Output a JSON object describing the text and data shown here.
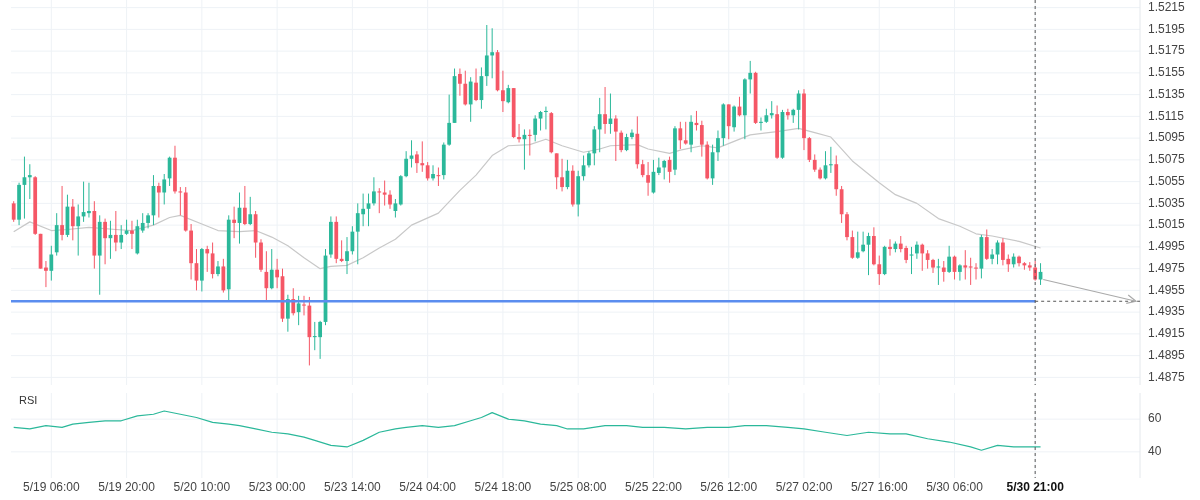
{
  "chart_data": [
    {
      "type": "candlestick",
      "grid": true,
      "tick_labels": "y",
      "categories": [
        null,
        null,
        null,
        null,
        null,
        null,
        null,
        "5/19 06:00",
        null,
        null,
        null,
        null,
        null,
        null,
        null,
        null,
        null,
        null,
        null,
        null,
        null,
        "5/19 20:00",
        null,
        null,
        null,
        null,
        null,
        null,
        null,
        null,
        null,
        null,
        null,
        null,
        null,
        "5/20 10:00",
        null,
        null,
        null,
        null,
        null,
        null,
        null,
        null,
        null,
        null,
        null,
        null,
        null,
        "5/23 00:00",
        null,
        null,
        null,
        null,
        null,
        null,
        null,
        null,
        null,
        null,
        null,
        null,
        null,
        "5/23 14:00",
        null,
        null,
        null,
        null,
        null,
        null,
        null,
        null,
        null,
        null,
        null,
        null,
        null,
        "5/24 04:00",
        null,
        null,
        null,
        null,
        null,
        null,
        null,
        null,
        null,
        null,
        null,
        null,
        null,
        "5/24 18:00",
        null,
        null,
        null,
        null,
        null,
        null,
        null,
        null,
        null,
        null,
        null,
        null,
        null,
        "5/25 08:00",
        null,
        null,
        null,
        null,
        null,
        null,
        null,
        null,
        null,
        null,
        null,
        null,
        null,
        "5/25 22:00",
        null,
        null,
        null,
        null,
        null,
        null,
        null,
        null,
        null,
        null,
        null,
        null,
        null,
        "5/26 12:00",
        null,
        null,
        null,
        null,
        null,
        null,
        null,
        null,
        null,
        null,
        null,
        null,
        null,
        "5/27 02:00",
        null,
        null,
        null,
        null,
        null,
        null,
        null,
        null,
        null,
        null,
        null,
        null,
        null,
        "5/27 16:00",
        null,
        null,
        null,
        null,
        null,
        null,
        null,
        null,
        null,
        null,
        null,
        null,
        null,
        "5/30 06:00",
        null,
        null,
        null,
        null,
        null,
        null,
        null,
        null,
        null,
        null,
        null,
        null,
        null,
        null,
        "5/30 21:00",
        null,
        null,
        null,
        null,
        null,
        null,
        null,
        null,
        null,
        null,
        null,
        null,
        null,
        null,
        null,
        null,
        null,
        null,
        null
      ],
      "ohlc": [
        [
          1.5035,
          1.5037,
          1.5018,
          1.502
        ],
        [
          1.502,
          1.5054,
          1.5015,
          1.5052
        ],
        [
          1.5052,
          1.5078,
          1.5021,
          1.5059
        ],
        [
          1.5059,
          1.5071,
          1.5039,
          1.5061
        ],
        [
          1.5059,
          1.506,
          1.5006,
          1.5007
        ],
        [
          1.5007,
          1.5007,
          1.4975,
          1.4975
        ],
        [
          1.4976,
          1.4982,
          1.4958,
          1.4973
        ],
        [
          1.4973,
          1.4996,
          1.4964,
          1.4988
        ],
        [
          1.499,
          1.5026,
          1.4987,
          1.5015
        ],
        [
          1.5015,
          1.5051,
          1.5001,
          1.5006
        ],
        [
          1.5006,
          1.5043,
          1.5004,
          1.5032
        ],
        [
          1.5032,
          1.5039,
          1.5001,
          1.5014
        ],
        [
          1.5014,
          1.5034,
          1.4987,
          1.5023
        ],
        [
          1.5023,
          1.5055,
          1.5018,
          1.5027
        ],
        [
          1.5026,
          1.5054,
          1.5022,
          1.5028
        ],
        [
          1.5028,
          1.5037,
          1.4975,
          1.4987
        ],
        [
          1.4987,
          1.5024,
          1.4951,
          1.5018
        ],
        [
          1.5018,
          1.5021,
          1.4979,
          1.5003
        ],
        [
          1.5003,
          1.5019,
          1.4984,
          1.5006
        ],
        [
          1.5006,
          1.5028,
          1.4991,
          1.4999
        ],
        [
          1.4999,
          1.5015,
          1.4993,
          1.5006
        ],
        [
          1.5007,
          1.502,
          1.5006,
          1.501
        ],
        [
          1.501,
          1.5019,
          1.4993,
          1.5007
        ],
        [
          1.4989,
          1.502,
          1.4988,
          1.5014
        ],
        [
          1.501,
          1.5026,
          1.5008,
          1.5017
        ],
        [
          1.5017,
          1.5026,
          1.5012,
          1.5024
        ],
        [
          1.5024,
          1.5061,
          1.5015,
          1.5051
        ],
        [
          1.5051,
          1.5054,
          1.5022,
          1.5045
        ],
        [
          1.5045,
          1.5062,
          1.5034,
          1.5057
        ],
        [
          1.5058,
          1.5078,
          1.5051,
          1.5077
        ],
        [
          1.5077,
          1.5088,
          1.5044,
          1.5046
        ],
        [
          1.5046,
          1.505,
          1.5024,
          1.5045
        ],
        [
          1.5045,
          1.505,
          1.5009,
          1.501
        ],
        [
          1.501,
          1.5016,
          1.4965,
          1.498
        ],
        [
          1.498,
          1.4993,
          1.4955,
          1.4964
        ],
        [
          1.4964,
          1.4994,
          1.4954,
          1.4993
        ],
        [
          1.4993,
          1.4996,
          1.4972,
          1.4989
        ],
        [
          1.4989,
          1.4999,
          1.4966,
          1.497
        ],
        [
          1.497,
          1.4982,
          1.4968,
          1.4977
        ],
        [
          1.4977,
          1.4984,
          1.4953,
          1.4955
        ],
        [
          1.4956,
          1.5024,
          1.4945,
          1.502
        ],
        [
          1.502,
          1.5032,
          1.5003,
          1.5017
        ],
        [
          1.5017,
          1.5045,
          1.4998,
          1.5031
        ],
        [
          1.5031,
          1.5051,
          1.5015,
          1.5016
        ],
        [
          1.5016,
          1.5041,
          1.5015,
          1.5025
        ],
        [
          1.5025,
          1.5028,
          1.4985,
          1.4999
        ],
        [
          1.4999,
          1.5002,
          1.4972,
          1.4974
        ],
        [
          1.4972,
          1.4991,
          1.4945,
          1.4957
        ],
        [
          1.4957,
          1.4993,
          1.4956,
          1.4974
        ],
        [
          1.4974,
          1.4984,
          1.4957,
          1.4967
        ],
        [
          1.4968,
          1.4975,
          1.4926,
          1.4929
        ],
        [
          1.4929,
          1.4951,
          1.4917,
          1.4947
        ],
        [
          1.4947,
          1.4957,
          1.4932,
          1.4934
        ],
        [
          1.4935,
          1.495,
          1.4923,
          1.4943
        ],
        [
          1.4942,
          1.495,
          1.4932,
          1.4941
        ],
        [
          1.4941,
          1.4949,
          1.4886,
          1.4912
        ],
        [
          1.4912,
          1.4926,
          1.49,
          1.4913
        ],
        [
          1.4912,
          1.4927,
          1.4892,
          1.4926
        ],
        [
          1.4926,
          1.4993,
          1.4923,
          1.4987
        ],
        [
          1.4988,
          1.5023,
          1.4985,
          1.5018
        ],
        [
          1.5018,
          1.5023,
          1.498,
          1.4984
        ],
        [
          1.4984,
          1.5001,
          1.4981,
          1.4982
        ],
        [
          1.4982,
          1.5004,
          1.497,
          1.4991
        ],
        [
          1.4991,
          1.5014,
          1.4988,
          1.5009
        ],
        [
          1.5009,
          1.5035,
          1.4979,
          1.5026
        ],
        [
          1.5025,
          1.5044,
          1.5014,
          1.503
        ],
        [
          1.503,
          1.5044,
          1.5014,
          1.5035
        ],
        [
          1.5035,
          1.5059,
          1.5033,
          1.5046
        ],
        [
          1.5046,
          1.5049,
          1.5026,
          1.5045
        ],
        [
          1.5045,
          1.5056,
          1.5033,
          1.5043
        ],
        [
          1.5043,
          1.5047,
          1.503,
          1.5034
        ],
        [
          1.5028,
          1.5039,
          1.5022,
          1.5035
        ],
        [
          1.5034,
          1.5061,
          1.5033,
          1.506
        ],
        [
          1.506,
          1.5083,
          1.5059,
          1.5076
        ],
        [
          1.5076,
          1.5093,
          1.5068,
          1.5079
        ],
        [
          1.508,
          1.5083,
          1.5063,
          1.5072
        ],
        [
          1.5072,
          1.5092,
          1.5064,
          1.507
        ],
        [
          1.507,
          1.5073,
          1.5056,
          1.5058
        ],
        [
          1.5058,
          1.507,
          1.5056,
          1.5062
        ],
        [
          1.5061,
          1.5068,
          1.5051,
          1.506
        ],
        [
          1.5061,
          1.5091,
          1.5057,
          1.5089
        ],
        [
          1.5089,
          1.5135,
          1.5088,
          1.5109
        ],
        [
          1.5109,
          1.5159,
          1.5109,
          1.5152
        ],
        [
          1.5154,
          1.5159,
          1.5134,
          1.5145
        ],
        [
          1.5145,
          1.5157,
          1.5125,
          1.5126
        ],
        [
          1.5126,
          1.5151,
          1.511,
          1.5147
        ],
        [
          1.5146,
          1.5159,
          1.5129,
          1.513
        ],
        [
          1.513,
          1.516,
          1.5122,
          1.5152
        ],
        [
          1.5152,
          1.5199,
          1.5143,
          1.5171
        ],
        [
          1.5171,
          1.5196,
          1.515,
          1.5174
        ],
        [
          1.5174,
          1.5176,
          1.5138,
          1.5139
        ],
        [
          1.5139,
          1.5157,
          1.5119,
          1.5129
        ],
        [
          1.5128,
          1.5144,
          1.5127,
          1.5141
        ],
        [
          1.5141,
          1.5141,
          1.5095,
          1.5096
        ],
        [
          1.5096,
          1.5108,
          1.5091,
          1.5094
        ],
        [
          1.5094,
          1.5103,
          1.5066,
          1.5098
        ],
        [
          1.5098,
          1.5103,
          1.5079,
          1.5097
        ],
        [
          1.5098,
          1.5116,
          1.5092,
          1.5113
        ],
        [
          1.5113,
          1.512,
          1.5102,
          1.5119
        ],
        [
          1.5119,
          1.5124,
          1.5103,
          1.512
        ],
        [
          1.5118,
          1.5119,
          1.5081,
          1.5082
        ],
        [
          1.5081,
          1.5081,
          1.5048,
          1.5059
        ],
        [
          1.5059,
          1.5076,
          1.5046,
          1.505
        ],
        [
          1.505,
          1.5075,
          1.5048,
          1.5065
        ],
        [
          1.5065,
          1.507,
          1.5032,
          1.5034
        ],
        [
          1.5034,
          1.5065,
          1.5023,
          1.506
        ],
        [
          1.506,
          1.5079,
          1.5056,
          1.507
        ],
        [
          1.507,
          1.5083,
          1.5068,
          1.5081
        ],
        [
          1.5081,
          1.5106,
          1.507,
          1.5103
        ],
        [
          1.5103,
          1.5132,
          1.5082,
          1.5117
        ],
        [
          1.5117,
          1.5142,
          1.5099,
          1.5108
        ],
        [
          1.5108,
          1.5136,
          1.5099,
          1.5113
        ],
        [
          1.5113,
          1.5116,
          1.5074,
          1.5101
        ],
        [
          1.51,
          1.5102,
          1.5082,
          1.5084
        ],
        [
          1.5084,
          1.5099,
          1.5083,
          1.5096
        ],
        [
          1.5096,
          1.5103,
          1.5094,
          1.51
        ],
        [
          1.5099,
          1.5115,
          1.5067,
          1.5071
        ],
        [
          1.5071,
          1.5075,
          1.5059,
          1.5061
        ],
        [
          1.5061,
          1.5073,
          1.5042,
          1.5054
        ],
        [
          1.5045,
          1.5075,
          1.5044,
          1.5064
        ],
        [
          1.5063,
          1.5077,
          1.5061,
          1.5068
        ],
        [
          1.5068,
          1.5075,
          1.5057,
          1.5074
        ],
        [
          1.5075,
          1.5078,
          1.5054,
          1.5064
        ],
        [
          1.5066,
          1.5106,
          1.5061,
          1.5104
        ],
        [
          1.5104,
          1.511,
          1.5085,
          1.5093
        ],
        [
          1.5093,
          1.511,
          1.5089,
          1.509
        ],
        [
          1.5089,
          1.5116,
          1.5082,
          1.511
        ],
        [
          1.5109,
          1.512,
          1.5102,
          1.5107
        ],
        [
          1.5107,
          1.5111,
          1.5078,
          1.5089
        ],
        [
          1.5089,
          1.5092,
          1.5057,
          1.5058
        ],
        [
          1.5058,
          1.5089,
          1.5052,
          1.5082
        ],
        [
          1.5082,
          1.5102,
          1.5074,
          1.5095
        ],
        [
          1.5095,
          1.5127,
          1.5088,
          1.5126
        ],
        [
          1.5126,
          1.5126,
          1.5094,
          1.5106
        ],
        [
          1.5105,
          1.5125,
          1.5101,
          1.5124
        ],
        [
          1.5124,
          1.5133,
          1.5115,
          1.5116
        ],
        [
          1.5116,
          1.515,
          1.5094,
          1.5149
        ],
        [
          1.5149,
          1.5166,
          1.5136,
          1.5155
        ],
        [
          1.5155,
          1.5156,
          1.5108,
          1.5109
        ],
        [
          1.5109,
          1.5114,
          1.5102,
          1.511
        ],
        [
          1.511,
          1.5122,
          1.5109,
          1.5116
        ],
        [
          1.5116,
          1.5129,
          1.5113,
          1.5118
        ],
        [
          1.5117,
          1.5125,
          1.5076,
          1.5077
        ],
        [
          1.5077,
          1.5121,
          1.5076,
          1.5119
        ],
        [
          1.5119,
          1.5122,
          1.5112,
          1.5116
        ],
        [
          1.5116,
          1.5122,
          1.5109,
          1.5121
        ],
        [
          1.5121,
          1.5139,
          1.5103,
          1.5136
        ],
        [
          1.5136,
          1.514,
          1.5084,
          1.5095
        ],
        [
          1.5095,
          1.5096,
          1.5073,
          1.5075
        ],
        [
          1.5075,
          1.508,
          1.5064,
          1.5066
        ],
        [
          1.5066,
          1.5068,
          1.5057,
          1.5058
        ],
        [
          1.5058,
          1.5083,
          1.5057,
          1.507
        ],
        [
          1.507,
          1.5087,
          1.5063,
          1.5071
        ],
        [
          1.5071,
          1.5079,
          1.5042,
          1.5048
        ],
        [
          1.5048,
          1.5051,
          1.5017,
          1.5025
        ],
        [
          1.5025,
          1.5027,
          1.5001,
          1.5004
        ],
        [
          1.5004,
          1.501,
          1.4984,
          1.4985
        ],
        [
          1.4985,
          1.5009,
          1.4984,
          1.499
        ],
        [
          1.4991,
          1.5009,
          1.499,
          1.4997
        ],
        [
          1.4997,
          1.5008,
          1.4969,
          1.5005
        ],
        [
          1.5005,
          1.5013,
          1.4978,
          1.4979
        ],
        [
          1.4979,
          1.4987,
          1.496,
          1.497
        ],
        [
          1.497,
          1.4996,
          1.4969,
          1.4995
        ],
        [
          1.4995,
          1.5002,
          1.4987,
          1.4993
        ],
        [
          1.4993,
          1.5,
          1.499,
          1.4998
        ],
        [
          1.4998,
          1.5005,
          1.499,
          1.4993
        ],
        [
          1.4994,
          1.4996,
          1.498,
          1.4983
        ],
        [
          1.4987,
          1.4995,
          1.497,
          1.4988
        ],
        [
          1.4989,
          1.5,
          1.4984,
          1.4997
        ],
        [
          1.4997,
          1.4998,
          1.4973,
          1.4989
        ],
        [
          1.4989,
          1.4992,
          1.4975,
          1.4983
        ],
        [
          1.4983,
          1.4984,
          1.4971,
          1.4976
        ],
        [
          1.4976,
          1.4984,
          1.496,
          1.4977
        ],
        [
          1.4976,
          1.4982,
          1.4963,
          1.4972
        ],
        [
          1.4972,
          1.4996,
          1.4971,
          1.4986
        ],
        [
          1.4986,
          1.4987,
          1.4965,
          1.4972
        ],
        [
          1.4972,
          1.4979,
          1.4964,
          1.4978
        ],
        [
          1.4978,
          1.4992,
          1.4965,
          1.4976
        ],
        [
          1.4977,
          1.4985,
          1.496,
          1.4976
        ],
        [
          1.4976,
          1.498,
          1.4965,
          1.4975
        ],
        [
          1.4975,
          1.5006,
          1.4966,
          1.5004
        ],
        [
          1.5004,
          1.5011,
          1.4983,
          1.4984
        ],
        [
          1.4984,
          1.4993,
          1.4979,
          1.4988
        ],
        [
          1.4988,
          1.5001,
          1.4979,
          1.4999
        ],
        [
          1.4999,
          1.5003,
          1.4978,
          1.4983
        ],
        [
          1.4984,
          1.4988,
          1.4972,
          1.4979
        ],
        [
          1.4979,
          1.4989,
          1.4976,
          1.4986
        ],
        [
          1.4986,
          1.4987,
          1.4977,
          1.498
        ],
        [
          1.498,
          1.4981,
          1.4974,
          1.4978
        ],
        [
          1.4978,
          1.4981,
          1.4973,
          1.4976
        ],
        [
          1.4976,
          1.4982,
          1.4964,
          1.4965
        ],
        [
          1.4965,
          1.498,
          1.496,
          1.4972
        ],
        null,
        null,
        null,
        null,
        null,
        null,
        null,
        null,
        null,
        null,
        null,
        null,
        null,
        null,
        null,
        null,
        null,
        null
      ],
      "series": [
        {
          "type": "line",
          "color": "#c8c8c8",
          "values": [
            1.5009,
            null,
            null,
            1.5018,
            null,
            null,
            null,
            1.501,
            null,
            null,
            1.5011,
            null,
            null,
            null,
            1.5013,
            null,
            null,
            null,
            null,
            1.5011,
            null,
            null,
            1.501,
            null,
            null,
            null,
            1.5015,
            null,
            null,
            1.5022,
            null,
            1.5024,
            null,
            null,
            null,
            1.5016,
            null,
            null,
            1.501,
            null,
            null,
            null,
            1.5009,
            null,
            null,
            1.501,
            null,
            null,
            1.5004,
            null,
            null,
            1.4996,
            null,
            null,
            1.4985,
            null,
            null,
            1.4975,
            null,
            1.4977,
            null,
            null,
            1.4978,
            null,
            null,
            1.4985,
            null,
            null,
            1.4994,
            null,
            null,
            1.5002,
            null,
            null,
            1.5015,
            null,
            null,
            null,
            null,
            1.5026,
            null,
            null,
            null,
            1.5047,
            null,
            null,
            1.5061,
            null,
            null,
            1.5079,
            null,
            null,
            1.5088,
            null,
            null,
            null,
            1.5089,
            null,
            null,
            1.5094,
            null,
            null,
            1.5088,
            null,
            null,
            null,
            1.5082,
            null,
            null,
            1.5085,
            null,
            1.5088,
            null,
            null,
            null,
            null,
            1.5089,
            null,
            1.5085,
            null,
            null,
            null,
            1.5081,
            null,
            1.5084,
            null,
            null,
            null,
            1.5088,
            null,
            null,
            1.5086,
            null,
            null,
            1.5092,
            null,
            null,
            1.5098,
            null,
            null,
            null,
            null,
            1.5101,
            null,
            null,
            null,
            1.5104,
            null,
            null,
            1.51,
            null,
            null,
            1.5096,
            null,
            null,
            null,
            1.5074,
            null,
            null,
            null,
            null,
            1.5054,
            null,
            null,
            1.5043,
            null,
            null,
            null,
            1.5035,
            null,
            null,
            null,
            1.5021,
            null,
            null,
            null,
            1.5014,
            null,
            null,
            1.5007,
            null,
            null,
            1.5005,
            null,
            null,
            null,
            null,
            1.5,
            null,
            null,
            null,
            1.4994,
            null,
            null,
            null,
            null,
            null,
            null,
            null,
            null,
            null,
            null,
            null,
            null,
            null,
            null,
            null,
            null,
            null,
            null
          ]
        }
      ],
      "ylim": [
        1.4868,
        1.5222
      ],
      "yticks": [
        1.4875,
        1.4895,
        1.4915,
        1.4935,
        1.4955,
        1.4975,
        1.4995,
        1.5015,
        1.5035,
        1.5055,
        1.5075,
        1.5095,
        1.5115,
        1.5135,
        1.5155,
        1.5175,
        1.5195,
        1.5215
      ],
      "ref_lines": [
        {
          "axis": "y",
          "value": 1.4945,
          "color": "#5b8def"
        },
        {
          "axis": "x",
          "value": "5/30 21:00",
          "line_style": "dashed",
          "color": "#555555"
        }
      ]
    },
    {
      "type": "line",
      "title": "RSI",
      "grid": true,
      "categories": [
        null,
        null,
        null,
        null,
        null,
        null,
        null,
        "5/19 06:00",
        null,
        null,
        null,
        null,
        null,
        null,
        null,
        null,
        null,
        null,
        null,
        null,
        null,
        "5/19 20:00",
        null,
        null,
        null,
        null,
        null,
        null,
        null,
        null,
        null,
        null,
        null,
        null,
        null,
        "5/20 10:00",
        null,
        null,
        null,
        null,
        null,
        null,
        null,
        null,
        null,
        null,
        null,
        null,
        null,
        "5/23 00:00",
        null,
        null,
        null,
        null,
        null,
        null,
        null,
        null,
        null,
        null,
        null,
        null,
        null,
        "5/23 14:00",
        null,
        null,
        null,
        null,
        null,
        null,
        null,
        null,
        null,
        null,
        null,
        null,
        null,
        "5/24 04:00",
        null,
        null,
        null,
        null,
        null,
        null,
        null,
        null,
        null,
        null,
        null,
        null,
        null,
        "5/24 18:00",
        null,
        null,
        null,
        null,
        null,
        null,
        null,
        null,
        null,
        null,
        null,
        null,
        null,
        "5/25 08:00",
        null,
        null,
        null,
        null,
        null,
        null,
        null,
        null,
        null,
        null,
        null,
        null,
        null,
        "5/25 22:00",
        null,
        null,
        null,
        null,
        null,
        null,
        null,
        null,
        null,
        null,
        null,
        null,
        null,
        "5/26 12:00",
        null,
        null,
        null,
        null,
        null,
        null,
        null,
        null,
        null,
        null,
        null,
        null,
        null,
        "5/27 02:00",
        null,
        null,
        null,
        null,
        null,
        null,
        null,
        null,
        null,
        null,
        null,
        null,
        null,
        "5/27 16:00",
        null,
        null,
        null,
        null,
        null,
        null,
        null,
        null,
        null,
        null,
        null,
        null,
        null,
        "5/30 06:00",
        null,
        null,
        null,
        null,
        null,
        null,
        null,
        null,
        null,
        null,
        null,
        null,
        null,
        null,
        "5/30 21:00",
        null,
        null,
        null,
        null,
        null,
        null,
        null,
        null,
        null,
        null,
        null,
        null,
        null,
        null,
        null,
        null,
        null,
        null,
        null
      ],
      "series": [
        {
          "color": "#2bb89a",
          "values": [
            55,
            null,
            null,
            54,
            null,
            null,
            56,
            null,
            null,
            55,
            null,
            57,
            null,
            null,
            58,
            null,
            null,
            59,
            null,
            null,
            59,
            null,
            null,
            62,
            null,
            null,
            63,
            null,
            65,
            null,
            null,
            63,
            null,
            null,
            61,
            null,
            null,
            58,
            null,
            null,
            57,
            null,
            56,
            null,
            null,
            54,
            null,
            null,
            52,
            null,
            null,
            51,
            null,
            null,
            49,
            null,
            47,
            null,
            null,
            44,
            null,
            null,
            43,
            null,
            null,
            47,
            null,
            null,
            52,
            null,
            null,
            54,
            null,
            55,
            null,
            null,
            56,
            null,
            null,
            55,
            null,
            null,
            56,
            null,
            null,
            59,
            null,
            61,
            null,
            64,
            null,
            null,
            60,
            null,
            null,
            59,
            null,
            null,
            57,
            null,
            null,
            56,
            null,
            54,
            null,
            null,
            54,
            null,
            null,
            null,
            56,
            null,
            null,
            null,
            56,
            null,
            null,
            55,
            null,
            null,
            null,
            55,
            null,
            null,
            null,
            54,
            null,
            null,
            null,
            55,
            null,
            null,
            null,
            55,
            null,
            null,
            56,
            null,
            null,
            null,
            56,
            null,
            null,
            null,
            55,
            null,
            null,
            54,
            null,
            null,
            null,
            52,
            null,
            null,
            null,
            50,
            null,
            null,
            null,
            52,
            null,
            null,
            null,
            51,
            null,
            null,
            51,
            null,
            null,
            null,
            48,
            null,
            null,
            null,
            46,
            null,
            null,
            null,
            43,
            null,
            41,
            null,
            null,
            44,
            null,
            null,
            43,
            null,
            null,
            43,
            null,
            43,
            null,
            null,
            null,
            null,
            null,
            null,
            null,
            null,
            null,
            null,
            null,
            null,
            null,
            null,
            null,
            null,
            null,
            null
          ]
        }
      ],
      "ylim": [
        24,
        76
      ],
      "yticks": [
        40,
        60
      ],
      "ref_lines": [
        {
          "axis": "x",
          "value": "5/30 21:00",
          "line_style": "dashed",
          "color": "#555555"
        }
      ]
    }
  ]
}
